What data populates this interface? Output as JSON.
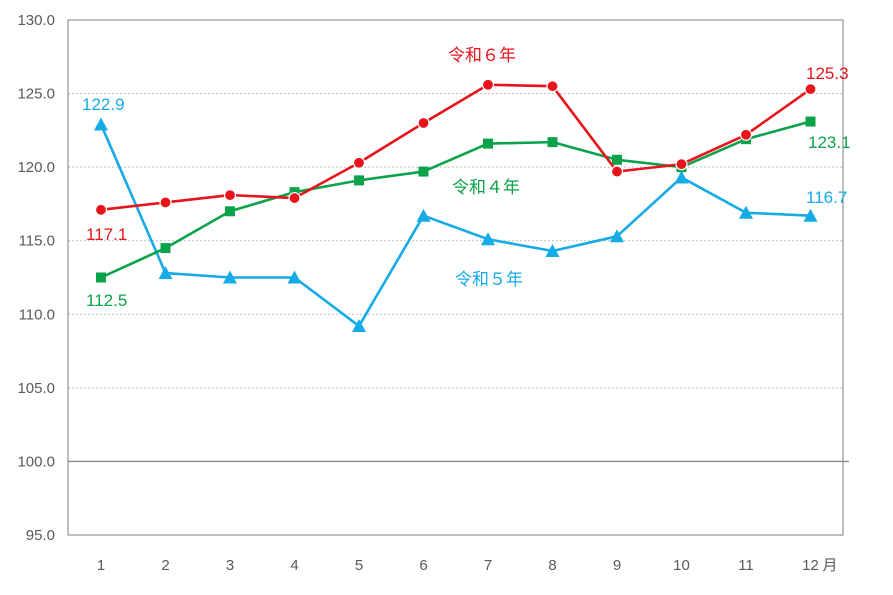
{
  "chart_data": {
    "type": "line",
    "title": "",
    "xlabel": "",
    "ylabel": "",
    "categories": [
      "1",
      "2",
      "3",
      "4",
      "5",
      "6",
      "7",
      "8",
      "9",
      "10",
      "11",
      "12"
    ],
    "x_unit": "月",
    "ylim": [
      95.0,
      130.0
    ],
    "y_ticks": [
      "95.0",
      "100.0",
      "105.0",
      "110.0",
      "115.0",
      "120.0",
      "125.0",
      "130.0"
    ],
    "reference_line": 100.0,
    "grid": "horizontal dotted",
    "series": [
      {
        "name": "令和６年",
        "color": "#e8141c",
        "marker": "circle",
        "values": [
          117.1,
          117.6,
          118.1,
          117.9,
          120.3,
          123.0,
          125.6,
          125.5,
          119.7,
          120.2,
          122.2,
          125.3
        ],
        "end_labels": [
          "117.1",
          "125.3"
        ]
      },
      {
        "name": "令和４年",
        "color": "#0aa24a",
        "marker": "square",
        "values": [
          112.5,
          114.5,
          117.0,
          118.3,
          119.1,
          119.7,
          121.6,
          121.7,
          120.5,
          120.0,
          121.9,
          123.1
        ],
        "end_labels": [
          "112.5",
          "123.1"
        ]
      },
      {
        "name": "令和５年",
        "color": "#14abe6",
        "marker": "triangle",
        "values": [
          122.9,
          112.8,
          112.5,
          112.5,
          109.2,
          116.7,
          115.1,
          114.3,
          115.3,
          119.3,
          116.9,
          116.7
        ],
        "end_labels": [
          "122.9",
          "116.7"
        ]
      }
    ]
  }
}
